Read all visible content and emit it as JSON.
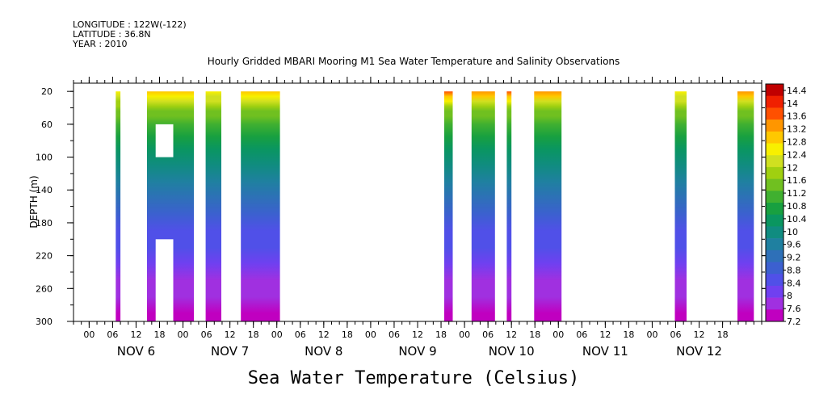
{
  "header": {
    "longitude": "LONGITUDE : 122W(-122)",
    "latitude": "LATITUDE : 36.8N",
    "year": "YEAR : 2010"
  },
  "chart_data": {
    "type": "heatmap",
    "title": "Hourly Gridded MBARI Mooring M1 Sea Water Temperature and Salinity Observations",
    "xlabel": "",
    "ylabel": "DEPTH (m)",
    "colorbar_label": "Sea Water Temperature (Celsius)",
    "x_units": "hours since 2010-11-06 00:00",
    "x_range": [
      -4,
      172
    ],
    "x_tick_labels": [
      "00",
      "06",
      "12",
      "18",
      "00",
      "06",
      "12",
      "18",
      "00",
      "06",
      "12",
      "18",
      "00",
      "06",
      "12",
      "18",
      "00",
      "06",
      "12",
      "18",
      "00",
      "06",
      "12",
      "18",
      "00",
      "06",
      "12",
      "18"
    ],
    "x_tick_hours": [
      0,
      6,
      12,
      18,
      24,
      30,
      36,
      42,
      48,
      54,
      60,
      66,
      72,
      78,
      84,
      90,
      96,
      102,
      108,
      114,
      120,
      126,
      132,
      138,
      144,
      150,
      156,
      162
    ],
    "day_labels": [
      "NOV  6",
      "NOV  7",
      "NOV  8",
      "NOV  9",
      "NOV 10",
      "NOV 11",
      "NOV 12"
    ],
    "day_label_hours": [
      12,
      36,
      60,
      84,
      108,
      132,
      156
    ],
    "y_range": [
      300,
      10
    ],
    "y_ticks": [
      20,
      60,
      100,
      140,
      180,
      220,
      260,
      300
    ],
    "colorbar_ticks": [
      "14.4",
      "14",
      "13.6",
      "13.2",
      "12.8",
      "12.4",
      "12",
      "11.6",
      "11.2",
      "10.8",
      "10.4",
      "10",
      "9.6",
      "9.2",
      "8.8",
      "8.4",
      "8",
      "7.6",
      "7.2"
    ],
    "colorbar_range": [
      7.2,
      14.6
    ],
    "colors": [
      "#c000c0",
      "#a030e0",
      "#7040f0",
      "#5050e8",
      "#3c60d0",
      "#2e70b8",
      "#1f80a0",
      "#108c80",
      "#0a9660",
      "#18a040",
      "#40b030",
      "#70c020",
      "#a0d010",
      "#d0e020",
      "#f8f000",
      "#ffc800",
      "#ff9600",
      "#ff5000",
      "#f02000",
      "#c00000"
    ],
    "segments": [
      {
        "start": 6.8,
        "end": 8.0,
        "surface_temp": 12.4
      },
      {
        "start": 14.8,
        "end": 26.8,
        "surface_temp": 13.0
      },
      {
        "start": 29.8,
        "end": 33.8,
        "surface_temp": 12.6
      },
      {
        "start": 38.8,
        "end": 48.8,
        "surface_temp": 13.0
      },
      {
        "start": 90.8,
        "end": 93.0,
        "surface_temp": 13.6
      },
      {
        "start": 97.8,
        "end": 103.8,
        "surface_temp": 13.2
      },
      {
        "start": 106.8,
        "end": 108.0,
        "surface_temp": 13.6
      },
      {
        "start": 113.8,
        "end": 120.8,
        "surface_temp": 13.4
      },
      {
        "start": 149.8,
        "end": 152.8,
        "surface_temp": 12.6
      },
      {
        "start": 165.8,
        "end": 170.0,
        "surface_temp": 13.4
      }
    ],
    "gaps": [
      {
        "start": 17.0,
        "end": 21.5,
        "depth_top": 60,
        "depth_bottom": 100
      },
      {
        "start": 17.0,
        "end": 21.5,
        "depth_top": 200,
        "depth_bottom": 300
      }
    ]
  }
}
